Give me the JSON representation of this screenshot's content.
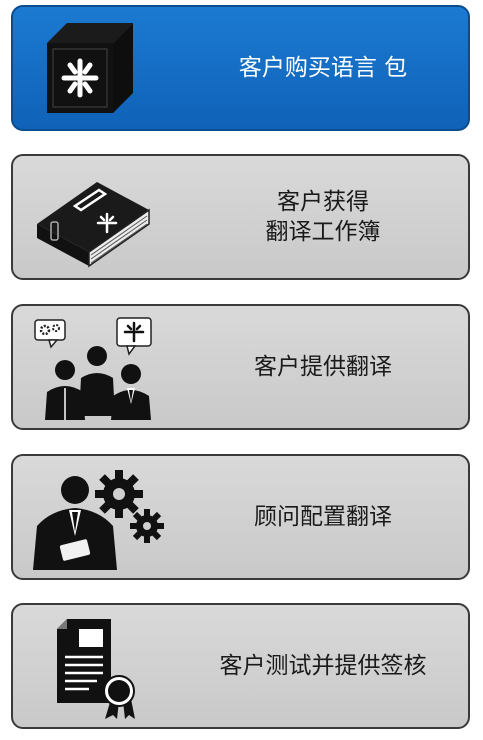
{
  "steps": [
    {
      "label": "客户购买语言 包",
      "icon": "language-pack-box-icon",
      "active": true
    },
    {
      "label": "客户获得\n翻译工作簿",
      "icon": "translation-workbook-icon",
      "active": false
    },
    {
      "label": "客户提供翻译",
      "icon": "customers-providing-translation-icon",
      "active": false
    },
    {
      "label": "顾问配置翻译",
      "icon": "consultant-configuring-gears-icon",
      "active": false
    },
    {
      "label": "客户测试并提供签核",
      "icon": "signoff-certificate-icon",
      "active": false
    }
  ],
  "colors": {
    "active_fill": "#1069c4",
    "inactive_fill": "#d2d2d2",
    "border": "#3a3a3a"
  }
}
